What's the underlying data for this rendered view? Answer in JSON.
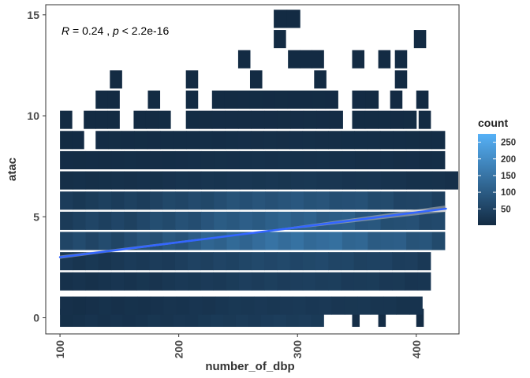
{
  "chart_data": {
    "type": "heatmap",
    "subtype": "2d-binned count (bin2d) with linear trend line",
    "xlabel": "number_of_dbp",
    "ylabel": "atac",
    "xlim": [
      88,
      436
    ],
    "ylim": [
      -0.8,
      15.5
    ],
    "x_ticks": [
      100,
      200,
      300,
      400
    ],
    "y_ticks": [
      0,
      5,
      10,
      15
    ],
    "annotation": {
      "r_symbol": "R",
      "r_text": " = 0.24 , ",
      "p_symbol": "p",
      "p_text": " < 2.2e-16"
    },
    "legend": {
      "title": "count",
      "ticks": [
        50,
        100,
        150,
        200,
        250
      ],
      "range": [
        1,
        275
      ],
      "low_color": "#132B43",
      "high_color": "#56B1F7",
      "position": "right"
    },
    "bin_width_x": 10.8,
    "bin_height_y": 0.9,
    "bins": [
      {
        "y": 0,
        "segments": [
          [
            100,
            322,
            35
          ],
          [
            346,
            352,
            10
          ],
          [
            368,
            374,
            8
          ],
          [
            400,
            406,
            6
          ]
        ]
      },
      {
        "y": 0.6,
        "segments": [
          [
            100,
            405,
            28
          ]
        ]
      },
      {
        "y": 1.8,
        "segments": [
          [
            100,
            412,
            40
          ]
        ]
      },
      {
        "y": 2.8,
        "segments": [
          [
            100,
            412,
            60
          ]
        ]
      },
      {
        "y": 3.8,
        "segments": [
          [
            100,
            424,
            140
          ]
        ]
      },
      {
        "y": 4.8,
        "segments": [
          [
            100,
            424,
            110
          ]
        ]
      },
      {
        "y": 5.8,
        "segments": [
          [
            100,
            424,
            85
          ]
        ]
      },
      {
        "y": 6.8,
        "segments": [
          [
            100,
            435,
            25
          ]
        ]
      },
      {
        "y": 7.8,
        "segments": [
          [
            100,
            424,
            12
          ]
        ]
      },
      {
        "y": 8.8,
        "segments": [
          [
            100,
            120,
            4
          ],
          [
            130,
            424,
            8
          ]
        ]
      },
      {
        "y": 9.8,
        "segments": [
          [
            100,
            110,
            3
          ],
          [
            120,
            150,
            3
          ],
          [
            162,
            193,
            3
          ],
          [
            206,
            338,
            4
          ],
          [
            346,
            400,
            3
          ],
          [
            402,
            412,
            2
          ]
        ]
      },
      {
        "y": 10.8,
        "segments": [
          [
            130,
            150,
            2
          ],
          [
            174,
            184,
            2
          ],
          [
            206,
            216,
            2
          ],
          [
            228,
            334,
            2
          ],
          [
            346,
            368,
            2
          ],
          [
            378,
            388,
            2
          ],
          [
            400,
            410,
            2
          ]
        ]
      },
      {
        "y": 11.8,
        "segments": [
          [
            142,
            152,
            1
          ],
          [
            206,
            216,
            1
          ],
          [
            260,
            270,
            1
          ],
          [
            314,
            324,
            1
          ],
          [
            382,
            392,
            1
          ]
        ]
      },
      {
        "y": 12.8,
        "segments": [
          [
            250,
            260,
            1
          ],
          [
            292,
            322,
            1
          ],
          [
            346,
            356,
            1
          ],
          [
            368,
            378,
            1
          ],
          [
            382,
            392,
            1
          ]
        ]
      },
      {
        "y": 13.8,
        "segments": [
          [
            280,
            290,
            1
          ],
          [
            398,
            408,
            1
          ]
        ]
      },
      {
        "y": 14.8,
        "segments": [
          [
            280,
            302,
            1
          ]
        ]
      }
    ],
    "trend_line": {
      "color": "#3366FF",
      "x": [
        100,
        425
      ],
      "y": [
        3.0,
        5.4
      ],
      "confidence_band": true
    },
    "grid": false,
    "frame": true
  }
}
